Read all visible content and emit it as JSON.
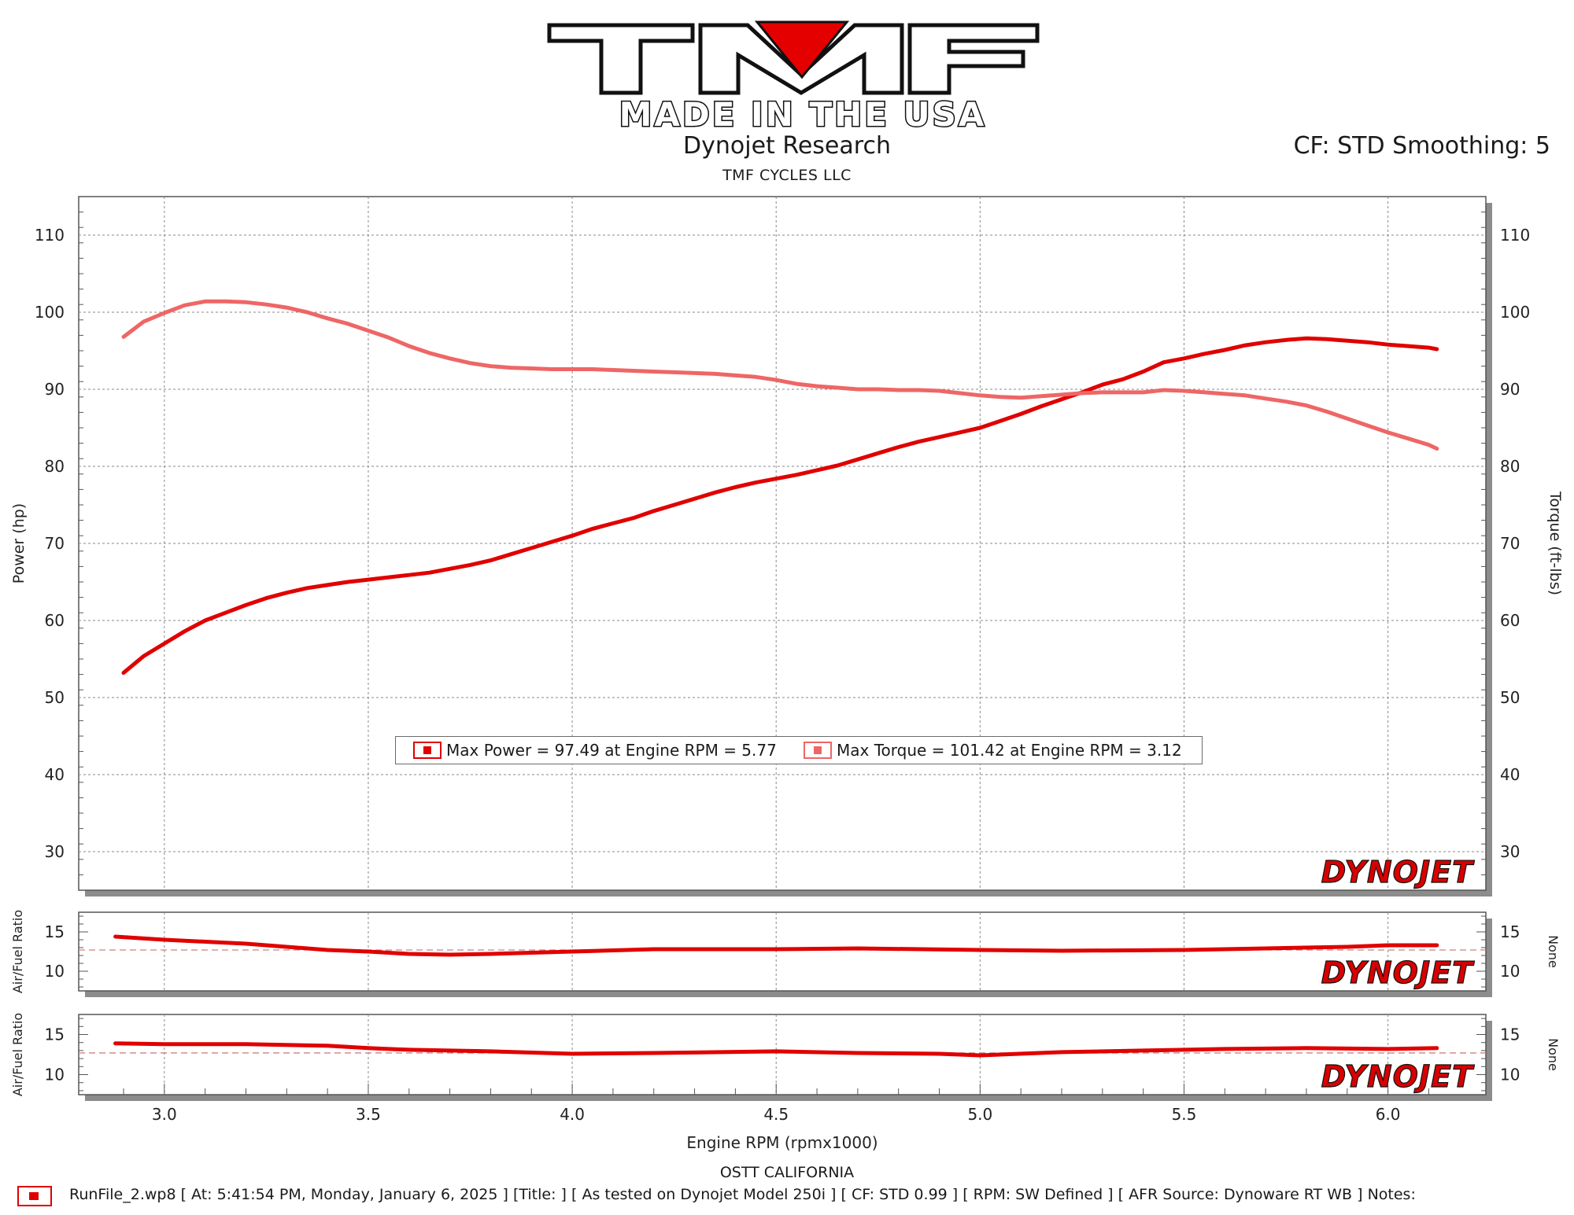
{
  "header": {
    "logo_text": "TMF",
    "logo_tagline": "MADE IN THE USA",
    "company": "Dynojet Research",
    "customer": "TMF CYCLES LLC",
    "correction": "CF: STD Smoothing: 5"
  },
  "footer": {
    "location": "OSTT CALIFORNIA",
    "run_info": "RunFile_2.wp8 [ At: 5:41:54 PM, Monday, January 6, 2025 ] [Title: ]  [ As tested on Dynojet Model 250i ] [ CF: STD 0.99 ] [ RPM: SW Defined ] [ AFR Source: Dynoware RT WB ] Notes:",
    "watermark": "DYNOJET"
  },
  "colors": {
    "power": "#e00000",
    "torque": "#ee6666",
    "grid": "#8a8a8a",
    "ref_line": "#d08080"
  },
  "chart_data": [
    {
      "type": "line",
      "xlabel": "Engine RPM (rpmx1000)",
      "ylabel": "Power (hp)",
      "y2label": "Torque (ft-lbs)",
      "xlim": [
        2.79,
        6.24
      ],
      "ylim": [
        25,
        115
      ],
      "xticks": [
        3.0,
        3.5,
        4.0,
        4.5,
        5.0,
        5.5,
        6.0
      ],
      "xtick_labels": [
        "3.0",
        "3.5",
        "4.0",
        "4.5",
        "5.0",
        "5.5",
        "6.0"
      ],
      "yticks": [
        30,
        40,
        50,
        60,
        70,
        80,
        90,
        100,
        110
      ],
      "ytick_labels": [
        "30",
        "40",
        "50",
        "60",
        "70",
        "80",
        "90",
        "100",
        "110"
      ],
      "grid": true,
      "legend": [
        "Max Power = 97.49 at Engine RPM = 5.77",
        "Max Torque = 101.42 at Engine RPM = 3.12"
      ],
      "series": [
        {
          "role": "power",
          "x": [
            2.9,
            2.95,
            3.0,
            3.05,
            3.1,
            3.15,
            3.2,
            3.25,
            3.3,
            3.35,
            3.4,
            3.45,
            3.5,
            3.55,
            3.6,
            3.65,
            3.7,
            3.75,
            3.8,
            3.85,
            3.9,
            3.95,
            4.0,
            4.05,
            4.1,
            4.15,
            4.2,
            4.25,
            4.3,
            4.35,
            4.4,
            4.45,
            4.5,
            4.55,
            4.6,
            4.65,
            4.7,
            4.75,
            4.8,
            4.85,
            4.9,
            4.95,
            5.0,
            5.05,
            5.1,
            5.15,
            5.2,
            5.25,
            5.3,
            5.35,
            5.4,
            5.45,
            5.5,
            5.55,
            5.6,
            5.65,
            5.7,
            5.75,
            5.8,
            5.85,
            5.9,
            5.95,
            6.0,
            6.05,
            6.1,
            6.12
          ],
          "y": [
            53.2,
            55.4,
            57.0,
            58.6,
            60.0,
            61.0,
            62.0,
            62.9,
            63.6,
            64.2,
            64.6,
            65.0,
            65.3,
            65.6,
            65.9,
            66.2,
            66.7,
            67.2,
            67.8,
            68.6,
            69.4,
            70.2,
            71.0,
            71.9,
            72.6,
            73.3,
            74.2,
            75.0,
            75.8,
            76.6,
            77.3,
            77.9,
            78.4,
            78.9,
            79.5,
            80.1,
            80.9,
            81.7,
            82.5,
            83.2,
            83.8,
            84.4,
            85.0,
            85.9,
            86.8,
            87.8,
            88.7,
            89.6,
            90.6,
            91.3,
            92.3,
            93.5,
            94.0,
            94.6,
            95.1,
            95.7,
            96.1,
            96.4,
            96.6,
            96.5,
            96.3,
            96.1,
            95.8,
            95.6,
            95.4,
            95.2
          ]
        },
        {
          "role": "torque",
          "x": [
            2.9,
            2.95,
            3.0,
            3.05,
            3.1,
            3.15,
            3.2,
            3.25,
            3.3,
            3.35,
            3.4,
            3.45,
            3.5,
            3.55,
            3.6,
            3.65,
            3.7,
            3.75,
            3.8,
            3.85,
            3.9,
            3.95,
            4.0,
            4.05,
            4.1,
            4.15,
            4.2,
            4.25,
            4.3,
            4.35,
            4.4,
            4.45,
            4.5,
            4.55,
            4.6,
            4.65,
            4.7,
            4.75,
            4.8,
            4.85,
            4.9,
            4.95,
            5.0,
            5.05,
            5.1,
            5.15,
            5.2,
            5.25,
            5.3,
            5.35,
            5.4,
            5.45,
            5.5,
            5.55,
            5.6,
            5.65,
            5.7,
            5.75,
            5.8,
            5.85,
            5.9,
            5.95,
            6.0,
            6.05,
            6.1,
            6.12
          ],
          "y": [
            96.8,
            98.8,
            99.9,
            100.9,
            101.4,
            101.4,
            101.3,
            101.0,
            100.6,
            100.0,
            99.2,
            98.5,
            97.6,
            96.7,
            95.6,
            94.7,
            94.0,
            93.4,
            93.0,
            92.8,
            92.7,
            92.6,
            92.6,
            92.6,
            92.5,
            92.4,
            92.3,
            92.2,
            92.1,
            92.0,
            91.8,
            91.6,
            91.2,
            90.7,
            90.4,
            90.2,
            90.0,
            90.0,
            89.9,
            89.9,
            89.8,
            89.5,
            89.2,
            89.0,
            88.9,
            89.1,
            89.3,
            89.5,
            89.6,
            89.6,
            89.6,
            89.9,
            89.8,
            89.6,
            89.4,
            89.2,
            88.8,
            88.4,
            87.9,
            87.1,
            86.2,
            85.3,
            84.4,
            83.6,
            82.8,
            82.3
          ]
        }
      ]
    },
    {
      "type": "line",
      "ylabel": "Air/Fuel Ratio",
      "y2label": "None",
      "xlim": [
        2.79,
        6.24
      ],
      "ylim": [
        7.5,
        17.5
      ],
      "yticks": [
        10,
        15
      ],
      "ytick_labels": [
        "10",
        "15"
      ],
      "reference_line": 12.7,
      "series": [
        {
          "role": "afr",
          "x": [
            2.88,
            3.0,
            3.2,
            3.4,
            3.5,
            3.6,
            3.7,
            3.8,
            4.0,
            4.2,
            4.5,
            4.7,
            5.0,
            5.2,
            5.5,
            5.7,
            5.9,
            6.0,
            6.12
          ],
          "y": [
            14.4,
            14.0,
            13.5,
            12.7,
            12.5,
            12.2,
            12.1,
            12.2,
            12.5,
            12.8,
            12.8,
            12.9,
            12.7,
            12.6,
            12.7,
            12.9,
            13.1,
            13.3,
            13.3
          ]
        }
      ]
    },
    {
      "type": "line",
      "ylabel": "Air/Fuel Ratio",
      "y2label": "None",
      "xlim": [
        2.79,
        6.24
      ],
      "ylim": [
        7.5,
        17.5
      ],
      "yticks": [
        10,
        15
      ],
      "ytick_labels": [
        "10",
        "15"
      ],
      "reference_line": 12.7,
      "series": [
        {
          "role": "afr",
          "x": [
            2.88,
            3.0,
            3.2,
            3.4,
            3.5,
            3.6,
            3.8,
            4.0,
            4.2,
            4.5,
            4.7,
            4.9,
            5.0,
            5.2,
            5.4,
            5.6,
            5.8,
            6.0,
            6.12
          ],
          "y": [
            13.9,
            13.8,
            13.8,
            13.6,
            13.3,
            13.1,
            12.9,
            12.6,
            12.7,
            12.9,
            12.7,
            12.6,
            12.4,
            12.8,
            13.0,
            13.2,
            13.3,
            13.2,
            13.3
          ]
        }
      ]
    }
  ]
}
